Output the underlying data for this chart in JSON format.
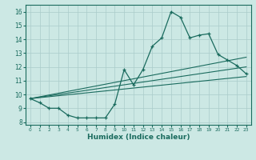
{
  "xlabel": "Humidex (Indice chaleur)",
  "ylabel": "",
  "xlim": [
    -0.5,
    23.5
  ],
  "ylim": [
    7.8,
    16.5
  ],
  "xticks": [
    0,
    1,
    2,
    3,
    4,
    5,
    6,
    7,
    8,
    9,
    10,
    11,
    12,
    13,
    14,
    15,
    16,
    17,
    18,
    19,
    20,
    21,
    22,
    23
  ],
  "yticks": [
    8,
    9,
    10,
    11,
    12,
    13,
    14,
    15,
    16
  ],
  "background_color": "#cce8e4",
  "grid_color": "#aaccca",
  "line_color": "#1a6b5e",
  "line1_x": [
    0,
    1,
    2,
    3,
    4,
    5,
    6,
    7,
    8,
    9,
    10,
    11,
    12,
    13,
    14,
    15,
    16,
    17,
    18,
    19,
    20,
    21,
    22,
    23
  ],
  "line1_y": [
    9.7,
    9.4,
    9.0,
    9.0,
    8.5,
    8.3,
    8.3,
    8.3,
    8.3,
    9.3,
    11.8,
    10.7,
    11.8,
    13.5,
    14.1,
    16.0,
    15.6,
    14.1,
    14.3,
    14.4,
    12.9,
    12.5,
    12.1,
    11.5
  ],
  "trend1_x": [
    0,
    23
  ],
  "trend1_y": [
    9.7,
    12.7
  ],
  "trend2_x": [
    0,
    23
  ],
  "trend2_y": [
    9.7,
    12.0
  ],
  "trend3_x": [
    0,
    23
  ],
  "trend3_y": [
    9.7,
    11.3
  ]
}
